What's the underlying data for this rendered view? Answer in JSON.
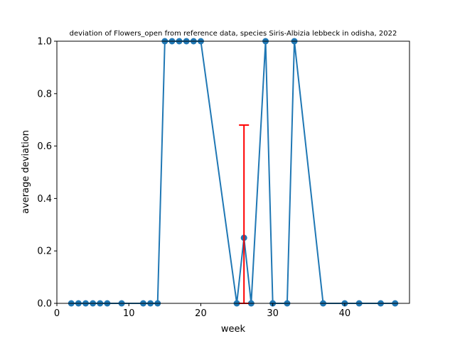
{
  "chart_data": {
    "type": "line",
    "title": "deviation of Flowers_open from reference data, species Siris-Albizia lebbeck in odisha, 2022",
    "xlabel": "week",
    "ylabel": "average deviation",
    "xlim": [
      0,
      49
    ],
    "ylim": [
      0,
      1
    ],
    "xticks": [
      0,
      10,
      20,
      30,
      40
    ],
    "yticks": [
      0.0,
      0.2,
      0.4,
      0.6,
      0.8,
      1.0
    ],
    "xtick_labels": [
      "0",
      "10",
      "20",
      "30",
      "40"
    ],
    "ytick_labels": [
      "0.0",
      "0.2",
      "0.4",
      "0.6",
      "0.8",
      "1.0"
    ],
    "grid": false,
    "series": [
      {
        "color": "#1f77b4",
        "marker": "circle",
        "x": [
          2,
          3,
          4,
          5,
          6,
          7,
          9,
          12,
          13,
          14,
          15,
          16,
          17,
          18,
          19,
          20,
          25,
          26,
          27,
          29,
          30,
          32,
          33,
          37,
          40,
          42,
          45,
          47
        ],
        "y": [
          0,
          0,
          0,
          0,
          0,
          0,
          0,
          0,
          0,
          0,
          1,
          1,
          1,
          1,
          1,
          1,
          0,
          0.25,
          0,
          1,
          0,
          0,
          1,
          0,
          0,
          0,
          0,
          0
        ]
      }
    ],
    "error_bars": [
      {
        "x": 26,
        "low": 0,
        "high": 0.68,
        "color": "#ff0000"
      }
    ]
  }
}
